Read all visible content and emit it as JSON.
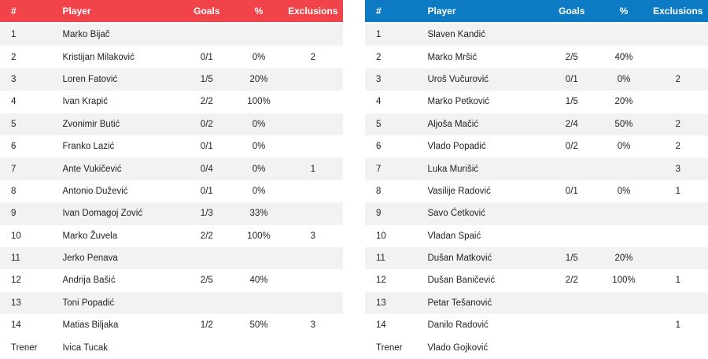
{
  "headers": {
    "num": "#",
    "player": "Player",
    "goals": "Goals",
    "pct": "%",
    "excl": "Exclusions"
  },
  "left": {
    "color": "#f0434a",
    "rows": [
      {
        "num": "1",
        "player": "Marko Bijač",
        "goals": "",
        "pct": "",
        "excl": ""
      },
      {
        "num": "2",
        "player": "Kristijan Milaković",
        "goals": "0/1",
        "pct": "0%",
        "excl": "2"
      },
      {
        "num": "3",
        "player": "Loren Fatović",
        "goals": "1/5",
        "pct": "20%",
        "excl": ""
      },
      {
        "num": "4",
        "player": "Ivan Krapić",
        "goals": "2/2",
        "pct": "100%",
        "excl": ""
      },
      {
        "num": "5",
        "player": "Zvonimir Butić",
        "goals": "0/2",
        "pct": "0%",
        "excl": ""
      },
      {
        "num": "6",
        "player": "Franko Lazić",
        "goals": "0/1",
        "pct": "0%",
        "excl": ""
      },
      {
        "num": "7",
        "player": "Ante Vukičević",
        "goals": "0/4",
        "pct": "0%",
        "excl": "1"
      },
      {
        "num": "8",
        "player": "Antonio Dužević",
        "goals": "0/1",
        "pct": "0%",
        "excl": ""
      },
      {
        "num": "9",
        "player": "Ivan Domagoj Zović",
        "goals": "1/3",
        "pct": "33%",
        "excl": ""
      },
      {
        "num": "10",
        "player": "Marko Žuvela",
        "goals": "2/2",
        "pct": "100%",
        "excl": "3"
      },
      {
        "num": "11",
        "player": "Jerko Penava",
        "goals": "",
        "pct": "",
        "excl": ""
      },
      {
        "num": "12",
        "player": "Andrija Bašić",
        "goals": "2/5",
        "pct": "40%",
        "excl": ""
      },
      {
        "num": "13",
        "player": "Toni Popadić",
        "goals": "",
        "pct": "",
        "excl": ""
      },
      {
        "num": "14",
        "player": "Matias Biljaka",
        "goals": "1/2",
        "pct": "50%",
        "excl": "3"
      }
    ],
    "coach_label": "Trener",
    "coach": "Ivica Tucak"
  },
  "right": {
    "color": "#0d7bc4",
    "rows": [
      {
        "num": "1",
        "player": "Slaven Kandić",
        "goals": "",
        "pct": "",
        "excl": ""
      },
      {
        "num": "2",
        "player": "Marko Mršić",
        "goals": "2/5",
        "pct": "40%",
        "excl": ""
      },
      {
        "num": "3",
        "player": "Uroš Vučurović",
        "goals": "0/1",
        "pct": "0%",
        "excl": "2"
      },
      {
        "num": "4",
        "player": "Marko Petković",
        "goals": "1/5",
        "pct": "20%",
        "excl": ""
      },
      {
        "num": "5",
        "player": "Aljoša Mačić",
        "goals": "2/4",
        "pct": "50%",
        "excl": "2"
      },
      {
        "num": "6",
        "player": "Vlado Popadić",
        "goals": "0/2",
        "pct": "0%",
        "excl": "2"
      },
      {
        "num": "7",
        "player": "Luka Murišić",
        "goals": "",
        "pct": "",
        "excl": "3"
      },
      {
        "num": "8",
        "player": "Vasilije Radović",
        "goals": "0/1",
        "pct": "0%",
        "excl": "1"
      },
      {
        "num": "9",
        "player": "Savo Ćetković",
        "goals": "",
        "pct": "",
        "excl": ""
      },
      {
        "num": "10",
        "player": "Vladan Spaić",
        "goals": "",
        "pct": "",
        "excl": ""
      },
      {
        "num": "11",
        "player": "Dušan Matković",
        "goals": "1/5",
        "pct": "20%",
        "excl": ""
      },
      {
        "num": "12",
        "player": "Dušan Baničević",
        "goals": "2/2",
        "pct": "100%",
        "excl": "1"
      },
      {
        "num": "13",
        "player": "Petar Tešanović",
        "goals": "",
        "pct": "",
        "excl": ""
      },
      {
        "num": "14",
        "player": "Danilo Radović",
        "goals": "",
        "pct": "",
        "excl": "1"
      }
    ],
    "coach_label": "Trener",
    "coach": "Vlado Gojković"
  }
}
